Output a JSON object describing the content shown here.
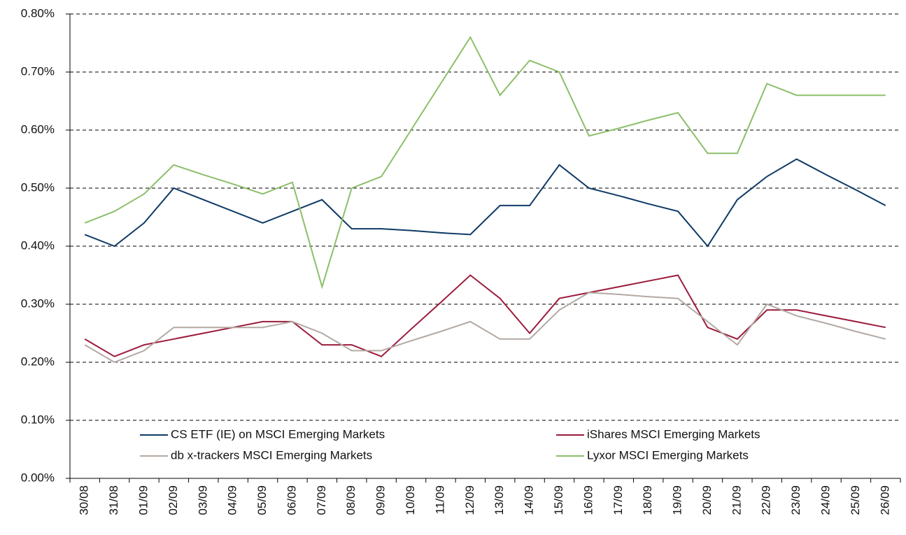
{
  "chart_data": {
    "type": "line",
    "categories": [
      "30/08",
      "31/08",
      "01/09",
      "02/09",
      "03/09",
      "04/09",
      "05/09",
      "06/09",
      "07/09",
      "08/09",
      "09/09",
      "10/09",
      "11/09",
      "12/09",
      "13/09",
      "14/09",
      "15/09",
      "16/09",
      "17/09",
      "18/09",
      "19/09",
      "20/09",
      "21/09",
      "22/09",
      "23/09",
      "24/09",
      "25/09",
      "26/09"
    ],
    "series": [
      {
        "name": "CS ETF (IE) on MSCI Emerging Markets",
        "color": "#0f3a66",
        "values": [
          0.42,
          0.4,
          0.44,
          0.5,
          0.48,
          0.46,
          0.44,
          0.46,
          0.48,
          0.43,
          0.43,
          0.427,
          0.423,
          0.42,
          0.47,
          0.47,
          0.54,
          0.5,
          0.487,
          0.473,
          0.46,
          0.4,
          0.48,
          0.52,
          0.55,
          0.523,
          0.497,
          0.47
        ]
      },
      {
        "name": "iShares MSCI Emerging Markets",
        "color": "#9b1b3b",
        "values": [
          0.24,
          0.21,
          0.23,
          0.24,
          0.25,
          0.26,
          0.27,
          0.27,
          0.23,
          0.23,
          0.21,
          0.257,
          0.303,
          0.35,
          0.31,
          0.25,
          0.31,
          0.32,
          0.33,
          0.34,
          0.35,
          0.26,
          0.24,
          0.29,
          0.29,
          0.28,
          0.27,
          0.26
        ]
      },
      {
        "name": "db x-trackers MSCI Emerging Markets",
        "color": "#b3a9a3",
        "values": [
          0.23,
          0.2,
          0.22,
          0.26,
          0.26,
          0.26,
          0.26,
          0.27,
          0.25,
          0.22,
          0.22,
          0.237,
          0.253,
          0.27,
          0.24,
          0.24,
          0.29,
          0.32,
          0.317,
          0.313,
          0.31,
          0.27,
          0.23,
          0.3,
          0.28,
          0.267,
          0.253,
          0.24
        ]
      },
      {
        "name": "Lyxor MSCI Emerging Markets",
        "color": "#8cbf6a",
        "values": [
          0.44,
          0.46,
          0.49,
          0.54,
          0.523,
          0.507,
          0.49,
          0.51,
          0.33,
          0.5,
          0.52,
          0.6,
          0.68,
          0.76,
          0.66,
          0.72,
          0.7,
          0.59,
          0.603,
          0.617,
          0.63,
          0.56,
          0.56,
          0.68,
          0.66,
          0.66,
          0.66,
          0.66
        ]
      }
    ],
    "ylim": [
      0,
      0.8
    ],
    "yticks": [
      {
        "value": 0,
        "label": "0.00%"
      },
      {
        "value": 0.1,
        "label": "0.10%"
      },
      {
        "value": 0.2,
        "label": "0.20%"
      },
      {
        "value": 0.3,
        "label": "0.30%"
      },
      {
        "value": 0.4,
        "label": "0.40%"
      },
      {
        "value": 0.5,
        "label": "0.50%"
      },
      {
        "value": 0.6,
        "label": "0.60%"
      },
      {
        "value": 0.7,
        "label": "0.70%"
      },
      {
        "value": 0.8,
        "label": "0.80%"
      }
    ],
    "grid": true,
    "legend": "bottom"
  }
}
